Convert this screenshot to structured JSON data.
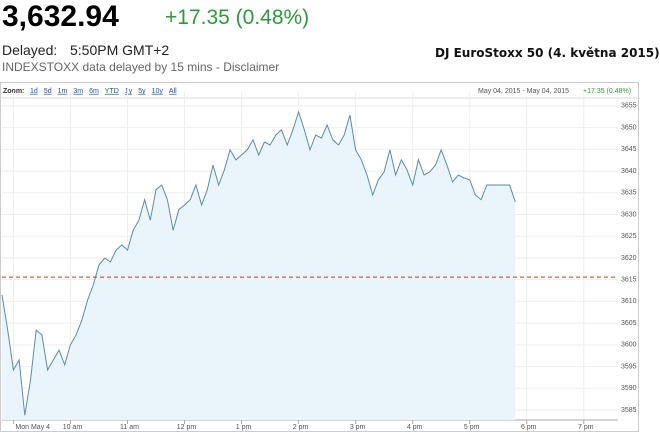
{
  "header": {
    "price": "3,632.94",
    "change": "+17.35 (0.48%)",
    "delayed_label": "Delayed:",
    "time": "5:50PM GMT+2",
    "source": "INDEXSTOXX data delayed by 15 mins - Disclaimer",
    "caption": "DJ EuroStoxx 50 (4. května 2015)"
  },
  "toolbar": {
    "zoom_label": "Zoom:",
    "zoom_options": [
      "1d",
      "5d",
      "1m",
      "3m",
      "6m",
      "YTD",
      "1y",
      "5y",
      "10y",
      "All"
    ],
    "range": "May 04, 2015 - May 04, 2015",
    "range_change": "+17.35 (0.48%)"
  },
  "chart_data": {
    "type": "area",
    "line_color": "#5b8cae",
    "fill_color": "#e9f4fb",
    "grid": true,
    "reference_line": 3615.59,
    "reference_color": "#c0392b",
    "xlim": [
      8.8,
      19.6
    ],
    "ylim": [
      3582.7,
      3658.2
    ],
    "xticks": [
      {
        "value": 9,
        "label": "Mon May 4"
      },
      {
        "value": 10,
        "label": "10 am"
      },
      {
        "value": 11,
        "label": "11 am"
      },
      {
        "value": 12,
        "label": "12 pm"
      },
      {
        "value": 13,
        "label": "1 pm"
      },
      {
        "value": 14,
        "label": "2 pm"
      },
      {
        "value": 15,
        "label": "3 pm"
      },
      {
        "value": 16,
        "label": "4 pm"
      },
      {
        "value": 17,
        "label": "5 pm"
      },
      {
        "value": 18,
        "label": "6 pm"
      },
      {
        "value": 19,
        "label": "7 pm"
      }
    ],
    "yticks": [
      3585,
      3590,
      3595,
      3600,
      3605,
      3610,
      3615,
      3620,
      3625,
      3630,
      3635,
      3640,
      3645,
      3650,
      3655
    ],
    "x": [
      8.8,
      8.9,
      9,
      9.1,
      9.2,
      9.3,
      9.4,
      9.5,
      9.6,
      9.7,
      9.8,
      9.9,
      10,
      10.1,
      10.2,
      10.3,
      10.4,
      10.5,
      10.6,
      10.7,
      10.8,
      10.9,
      11,
      11.1,
      11.2,
      11.3,
      11.4,
      11.5,
      11.6,
      11.7,
      11.8,
      11.9,
      12,
      12.1,
      12.2,
      12.3,
      12.4,
      12.5,
      12.6,
      12.7,
      12.8,
      12.9,
      13,
      13.1,
      13.2,
      13.3,
      13.4,
      13.5,
      13.6,
      13.7,
      13.8,
      13.9,
      14,
      14.1,
      14.2,
      14.3,
      14.4,
      14.5,
      14.6,
      14.7,
      14.8,
      14.9,
      15,
      15.1,
      15.2,
      15.3,
      15.4,
      15.5,
      15.6,
      15.7,
      15.8,
      15.9,
      16,
      16.1,
      16.2,
      16.3,
      16.4,
      16.5,
      16.6,
      16.7,
      16.8,
      16.9,
      17,
      17.1,
      17.2,
      17.3,
      17.4,
      17.5,
      17.6,
      17.7,
      17.8
    ],
    "values": [
      3611.5,
      3603.4,
      3594.2,
      3596.5,
      3583.8,
      3591.9,
      3603.4,
      3602.3,
      3594.2,
      3596.5,
      3598.8,
      3595.4,
      3600.0,
      3602.3,
      3605.7,
      3610.3,
      3613.8,
      3618.4,
      3620.0,
      3619.1,
      3621.8,
      3623.0,
      3621.8,
      3626.4,
      3628.7,
      3633.4,
      3628.7,
      3635.7,
      3636.8,
      3633.4,
      3626.4,
      3631.1,
      3632.2,
      3633.4,
      3636.8,
      3632.2,
      3635.7,
      3641.4,
      3636.8,
      3640.3,
      3644.9,
      3642.6,
      3643.7,
      3644.9,
      3647.2,
      3643.7,
      3646.7,
      3646.0,
      3648.3,
      3649.5,
      3646.0,
      3649.5,
      3653.6,
      3649.5,
      3644.9,
      3648.3,
      3647.6,
      3650.6,
      3647.2,
      3646.0,
      3648.3,
      3652.9,
      3644.9,
      3642.6,
      3639.1,
      3634.5,
      3638.0,
      3639.8,
      3644.9,
      3639.1,
      3642.6,
      3640.3,
      3636.8,
      3642.6,
      3639.1,
      3639.8,
      3641.4,
      3644.9,
      3641.4,
      3637.5,
      3639.1,
      3638.4,
      3638.0,
      3634.5,
      3633.4,
      3636.8,
      3636.8,
      3636.8,
      3636.8,
      3636.8,
      3632.9
    ]
  }
}
